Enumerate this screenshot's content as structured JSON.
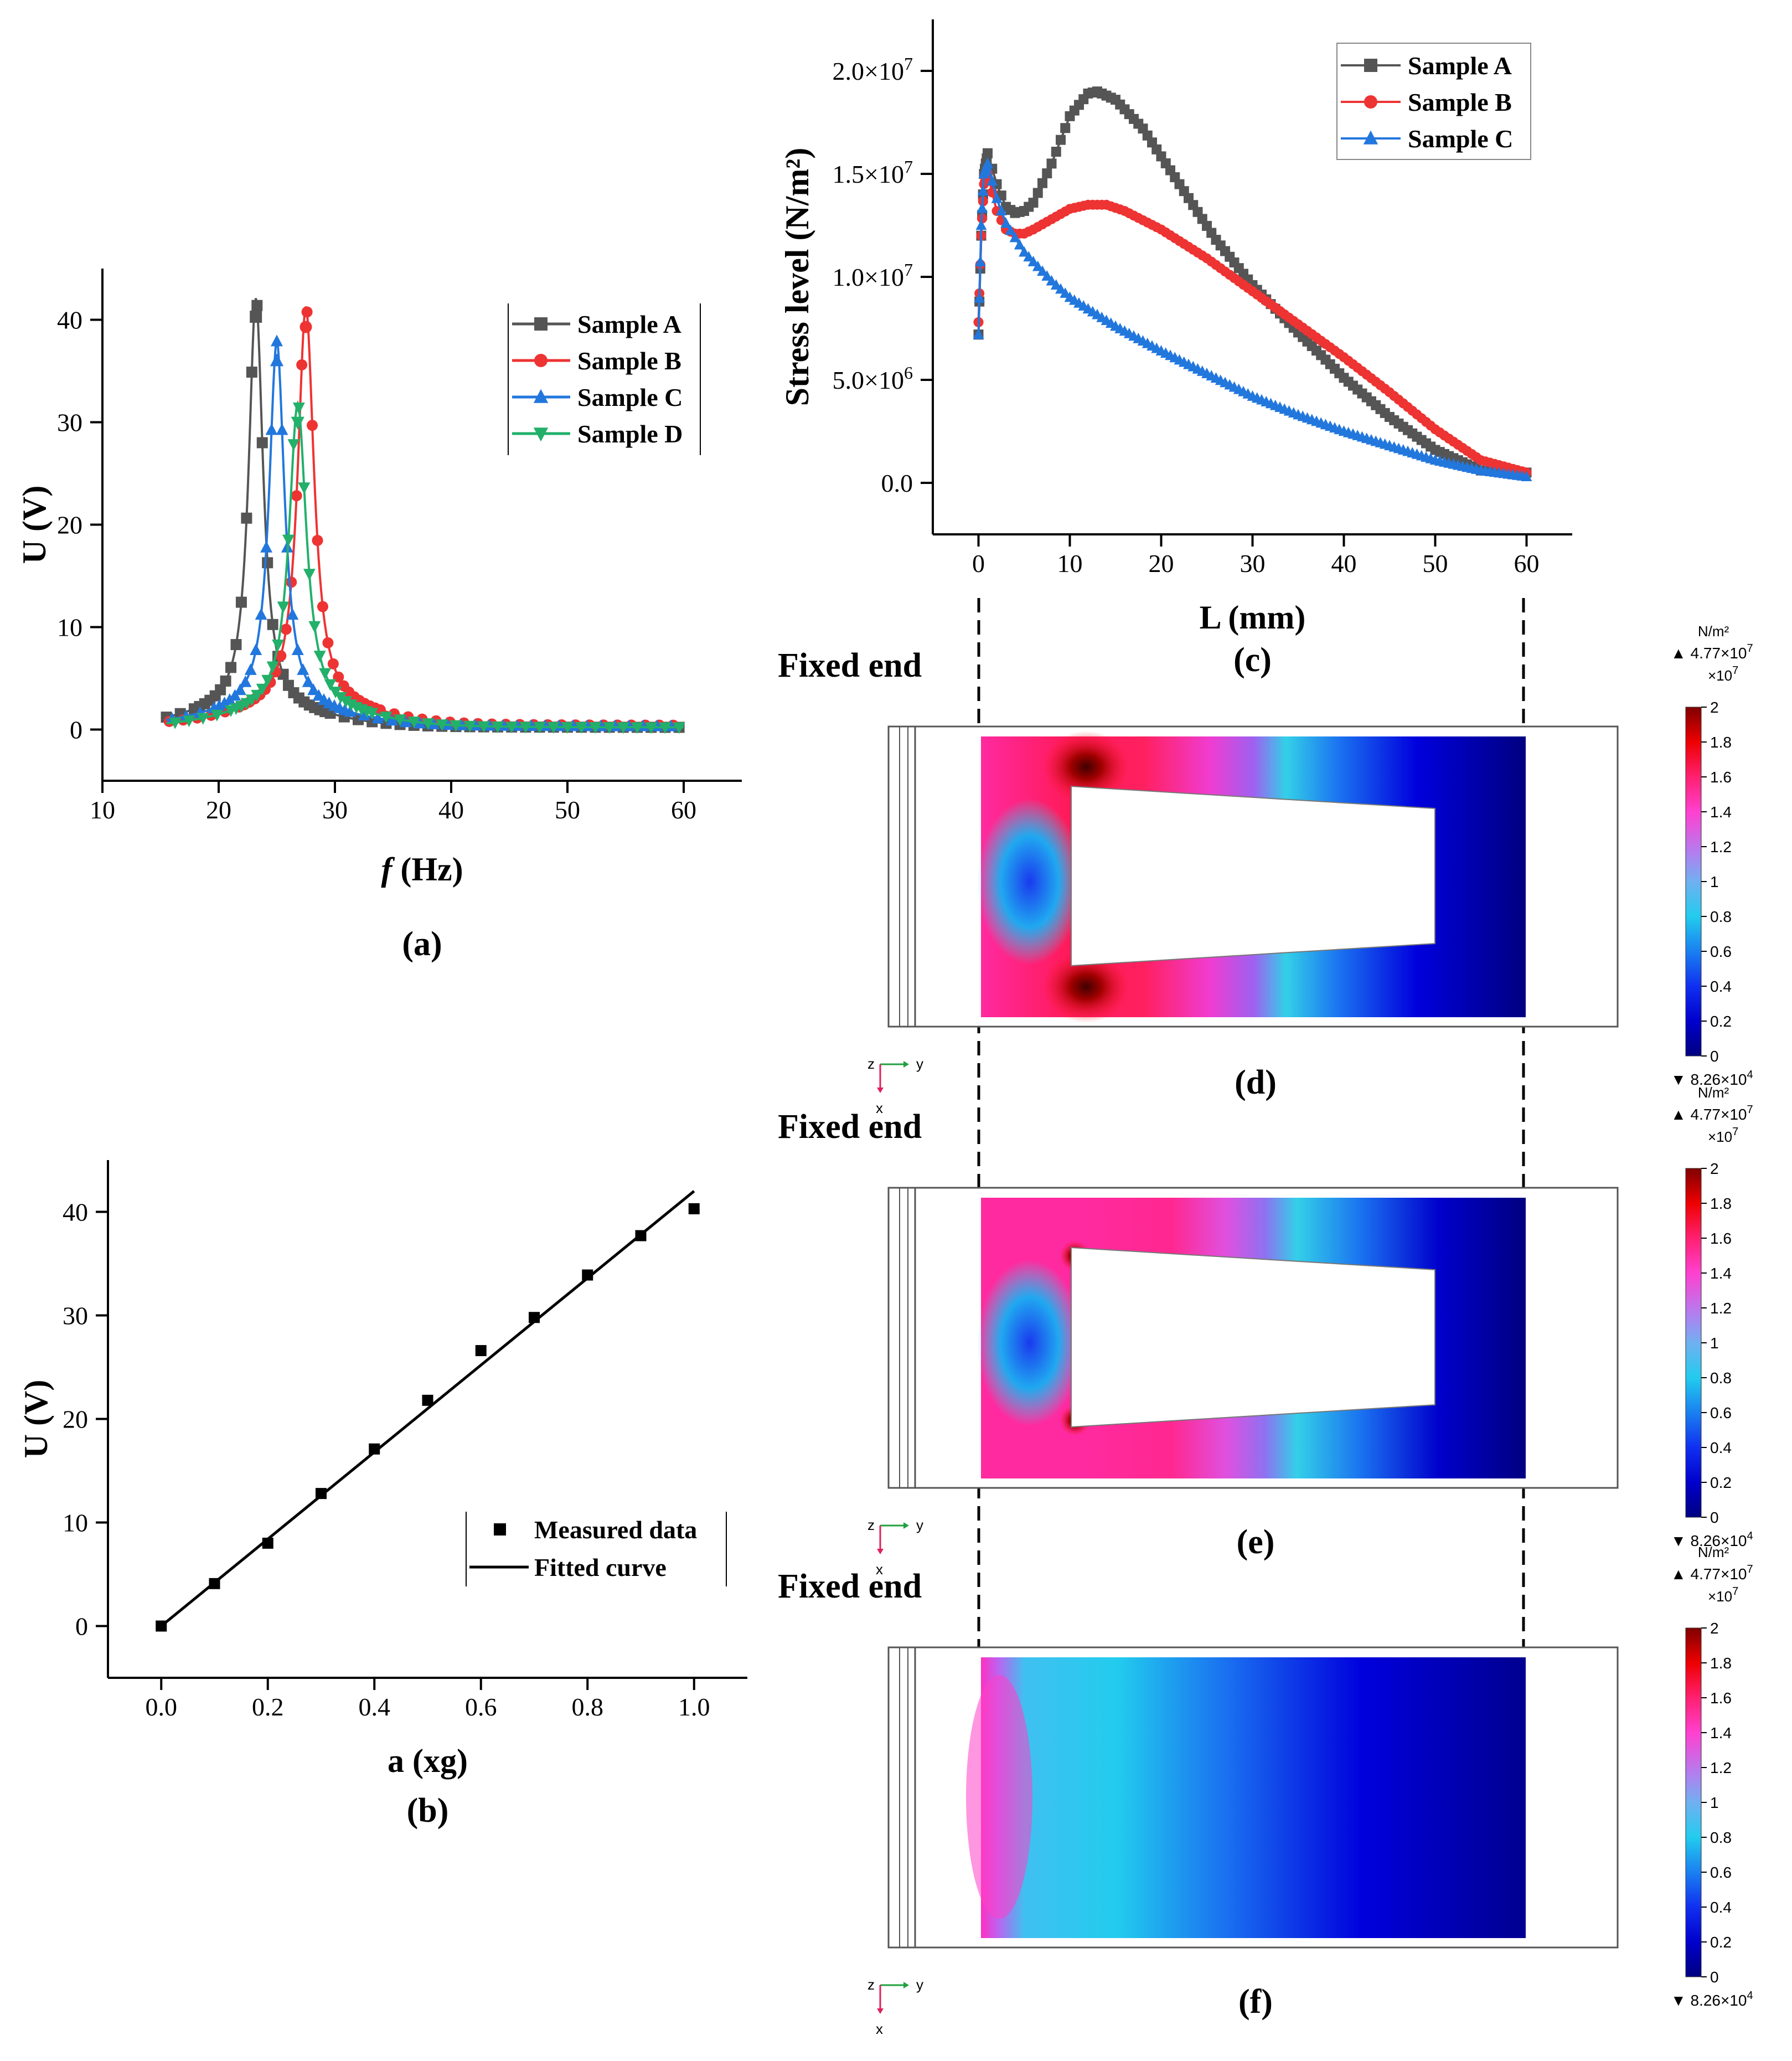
{
  "colors": {
    "sample_a": "#555555",
    "sample_b": "#ee3333",
    "sample_c": "#2277dd",
    "sample_d": "#22b06a",
    "axis": "#000000"
  },
  "chart_data": [
    {
      "id": "a",
      "type": "line",
      "caption": "(a)",
      "xlabel_italic": "f",
      "xlabel_rest": " (Hz)",
      "ylabel": "U (V)",
      "xlim": [
        10,
        65
      ],
      "ylim": [
        -5,
        45
      ],
      "xticks": [
        10,
        20,
        30,
        40,
        50,
        60
      ],
      "yticks": [
        0,
        10,
        20,
        30,
        40
      ],
      "legend": [
        "Sample A",
        "Sample B",
        "Sample C",
        "Sample D"
      ],
      "series": [
        {
          "name": "Sample A",
          "color": "#555555",
          "marker": "square",
          "peak": 23.2,
          "amp": 40.3,
          "gamma": 0.75,
          "base": 0.2,
          "peakmark": [
            23.2,
            40.3
          ]
        },
        {
          "name": "Sample B",
          "color": "#ee3333",
          "marker": "circle",
          "peak": 27.5,
          "amp": 39.3,
          "gamma": 0.85,
          "base": 0.4,
          "peakmark": [
            27.5,
            39.3
          ]
        },
        {
          "name": "Sample C",
          "color": "#2277dd",
          "marker": "triangle-up",
          "peak": 25.0,
          "amp": 36.0,
          "gamma": 0.8,
          "base": 0.3,
          "peakmark": [
            25.0,
            36.0
          ]
        },
        {
          "name": "Sample D",
          "color": "#22b06a",
          "marker": "triangle-down",
          "peak": 26.8,
          "amp": 30.0,
          "gamma": 0.9,
          "base": 0.2,
          "peakmark": [
            26.8,
            30.0
          ]
        }
      ],
      "x_start": 15.5,
      "x_end": 60
    },
    {
      "id": "b",
      "type": "scatter",
      "caption": "(b)",
      "xlabel": "a (xg)",
      "ylabel": "U (V)",
      "xlim": [
        -0.1,
        1.1
      ],
      "ylim": [
        -5,
        45
      ],
      "xticks": [
        0.0,
        0.2,
        0.4,
        0.6,
        0.8,
        1.0
      ],
      "yticks": [
        0,
        10,
        20,
        30,
        40
      ],
      "legend": [
        "Measured data",
        "Fitted curve"
      ],
      "measured": {
        "x": [
          0.0,
          0.1,
          0.2,
          0.3,
          0.4,
          0.5,
          0.6,
          0.7,
          0.8,
          0.9,
          1.0
        ],
        "y": [
          0.0,
          4.1,
          8.0,
          12.8,
          17.1,
          21.8,
          26.6,
          29.8,
          33.9,
          37.7,
          40.3
        ]
      },
      "fitted": {
        "x": [
          0.0,
          1.0
        ],
        "y": [
          0.0,
          42.0
        ]
      }
    },
    {
      "id": "c",
      "type": "line",
      "caption": "(c)",
      "xlabel": "L (mm)",
      "ylabel": "Stress level (N/m²)",
      "xlim": [
        -5,
        65
      ],
      "ylim": [
        -2500000,
        22500000
      ],
      "xticks": [
        0,
        10,
        20,
        30,
        40,
        50,
        60
      ],
      "yticks": [
        {
          "value": 0,
          "mant": "0.0",
          "exp": ""
        },
        {
          "value": 5000000,
          "mant": "5.0×10",
          "exp": "6"
        },
        {
          "value": 10000000,
          "mant": "1.0×10",
          "exp": "7"
        },
        {
          "value": 15000000,
          "mant": "1.5×10",
          "exp": "7"
        },
        {
          "value": 20000000,
          "mant": "2.0×10",
          "exp": "7"
        }
      ],
      "legend": [
        "Sample A",
        "Sample B",
        "Sample C"
      ],
      "series": [
        {
          "name": "Sample A",
          "color": "#555555",
          "marker": "square",
          "x": [
            0,
            0.3,
            0.6,
            1,
            2,
            3,
            4,
            5,
            6,
            8,
            10,
            12,
            13,
            15,
            18,
            22,
            26,
            30,
            35,
            40,
            45,
            50,
            55,
            60
          ],
          "y": [
            7200000,
            12000000,
            15000000,
            16000000,
            14500000,
            13400000,
            13100000,
            13200000,
            13600000,
            15500000,
            17800000,
            18900000,
            19000000,
            18600000,
            17200000,
            14500000,
            11800000,
            9600000,
            7300000,
            5100000,
            3200000,
            1600000,
            600000,
            500000
          ]
        },
        {
          "name": "Sample B",
          "color": "#ee3333",
          "marker": "circle",
          "x": [
            0,
            0.3,
            0.6,
            1,
            2,
            3,
            4,
            5,
            6,
            8,
            10,
            12,
            14,
            16,
            20,
            25,
            30,
            35,
            40,
            45,
            50,
            55,
            60
          ],
          "y": [
            7800000,
            12000000,
            14500000,
            15000000,
            13200000,
            12300000,
            12100000,
            12100000,
            12300000,
            12800000,
            13300000,
            13500000,
            13500000,
            13200000,
            12300000,
            10900000,
            9300000,
            7700000,
            6100000,
            4400000,
            2600000,
            1100000,
            500000
          ]
        },
        {
          "name": "Sample C",
          "color": "#2277dd",
          "marker": "triangle-up",
          "x": [
            0,
            0.3,
            0.6,
            1,
            2,
            3,
            5,
            8,
            10,
            15,
            20,
            25,
            30,
            35,
            40,
            45,
            50,
            55,
            60
          ],
          "y": [
            7200000,
            12500000,
            15000000,
            15500000,
            13800000,
            12600000,
            11200000,
            9800000,
            9000000,
            7600000,
            6400000,
            5300000,
            4200000,
            3300000,
            2500000,
            1800000,
            1100000,
            600000,
            300000
          ]
        }
      ]
    }
  ],
  "fields": {
    "fixed_end_label": "Fixed end",
    "colorbar_unit": "N/m²",
    "colorbar_max": "▲ 4.77×10",
    "colorbar_max_exp": "7",
    "colorbar_scale": "×10",
    "colorbar_scale_exp": "7",
    "colorbar_min": "▼ 8.26×10",
    "colorbar_min_exp": "4",
    "colorbar_ticks": [
      "2",
      "1.8",
      "1.6",
      "1.4",
      "1.2",
      "1",
      "0.8",
      "0.6",
      "0.4",
      "0.2",
      "0"
    ],
    "colorbar_tick_values": [
      2,
      1.8,
      1.6,
      1.4,
      1.2,
      1,
      0.8,
      0.6,
      0.4,
      0.2,
      0
    ],
    "axis_labels": {
      "z": "z",
      "y": "y",
      "x": "x"
    },
    "panels": [
      {
        "id": "d",
        "caption": "(d)",
        "variant": "tapered-hole-high"
      },
      {
        "id": "e",
        "caption": "(e)",
        "variant": "tapered-hole-low"
      },
      {
        "id": "f",
        "caption": "(f)",
        "variant": "solid"
      }
    ]
  }
}
